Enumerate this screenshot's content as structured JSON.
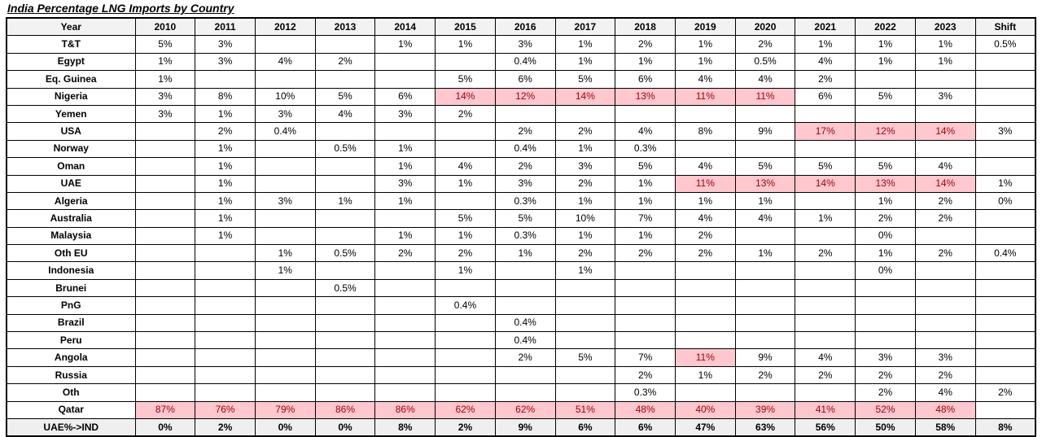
{
  "title": "India Percentage LNG Imports by Country",
  "colors": {
    "highlight_fill": "#ffc7ce",
    "highlight_text": "#9c0006",
    "header_fill": "#f2f2f2",
    "summary_fill": "#efefef",
    "border": "#000000"
  },
  "chart_data": {
    "type": "table",
    "title": "India Percentage LNG Imports by Country",
    "columns": [
      "Year",
      "2010",
      "2011",
      "2012",
      "2013",
      "2014",
      "2015",
      "2016",
      "2017",
      "2018",
      "2019",
      "2020",
      "2021",
      "2022",
      "2023",
      "Shift"
    ],
    "rows": [
      {
        "label": "T&T",
        "values": [
          "5%",
          "3%",
          "",
          "",
          "1%",
          "1%",
          "3%",
          "1%",
          "2%",
          "1%",
          "2%",
          "1%",
          "1%",
          "1%",
          "0.5%"
        ],
        "highlight": []
      },
      {
        "label": "Egypt",
        "values": [
          "1%",
          "3%",
          "4%",
          "2%",
          "",
          "",
          "0.4%",
          "1%",
          "1%",
          "1%",
          "0.5%",
          "4%",
          "1%",
          "1%",
          ""
        ],
        "highlight": []
      },
      {
        "label": "Eq. Guinea",
        "values": [
          "1%",
          "",
          "",
          "",
          "",
          "5%",
          "6%",
          "5%",
          "6%",
          "4%",
          "4%",
          "2%",
          "",
          "",
          ""
        ],
        "highlight": []
      },
      {
        "label": "Nigeria",
        "values": [
          "3%",
          "8%",
          "10%",
          "5%",
          "6%",
          "14%",
          "12%",
          "14%",
          "13%",
          "11%",
          "11%",
          "6%",
          "5%",
          "3%",
          ""
        ],
        "highlight": [
          5,
          6,
          7,
          8,
          9,
          10
        ]
      },
      {
        "label": "Yemen",
        "values": [
          "3%",
          "1%",
          "3%",
          "4%",
          "3%",
          "2%",
          "",
          "",
          "",
          "",
          "",
          "",
          "",
          "",
          ""
        ],
        "highlight": []
      },
      {
        "label": "USA",
        "values": [
          "",
          "2%",
          "0.4%",
          "",
          "",
          "",
          "2%",
          "2%",
          "4%",
          "8%",
          "9%",
          "17%",
          "12%",
          "14%",
          "3%"
        ],
        "highlight": [
          11,
          12,
          13
        ]
      },
      {
        "label": "Norway",
        "values": [
          "",
          "1%",
          "",
          "0.5%",
          "1%",
          "",
          "0.4%",
          "1%",
          "0.3%",
          "",
          "",
          "",
          "",
          "",
          ""
        ],
        "highlight": []
      },
      {
        "label": "Oman",
        "values": [
          "",
          "1%",
          "",
          "",
          "1%",
          "4%",
          "2%",
          "3%",
          "5%",
          "4%",
          "5%",
          "5%",
          "5%",
          "4%",
          ""
        ],
        "highlight": []
      },
      {
        "label": "UAE",
        "values": [
          "",
          "1%",
          "",
          "",
          "3%",
          "1%",
          "3%",
          "2%",
          "1%",
          "11%",
          "13%",
          "14%",
          "13%",
          "14%",
          "1%"
        ],
        "highlight": [
          9,
          10,
          11,
          12,
          13
        ]
      },
      {
        "label": "Algeria",
        "values": [
          "",
          "1%",
          "3%",
          "1%",
          "1%",
          "",
          "0.3%",
          "1%",
          "1%",
          "1%",
          "1%",
          "",
          "1%",
          "2%",
          "0%"
        ],
        "highlight": []
      },
      {
        "label": "Australia",
        "values": [
          "",
          "1%",
          "",
          "",
          "",
          "5%",
          "5%",
          "10%",
          "7%",
          "4%",
          "4%",
          "1%",
          "2%",
          "2%",
          ""
        ],
        "highlight": []
      },
      {
        "label": "Malaysia",
        "values": [
          "",
          "1%",
          "",
          "",
          "1%",
          "1%",
          "0.3%",
          "1%",
          "1%",
          "2%",
          "",
          "",
          "0%",
          "",
          ""
        ],
        "highlight": []
      },
      {
        "label": "Oth EU",
        "values": [
          "",
          "",
          "1%",
          "0.5%",
          "2%",
          "2%",
          "1%",
          "2%",
          "2%",
          "2%",
          "1%",
          "2%",
          "1%",
          "2%",
          "0.4%"
        ],
        "highlight": []
      },
      {
        "label": "Indonesia",
        "values": [
          "",
          "",
          "1%",
          "",
          "",
          "1%",
          "",
          "1%",
          "",
          "",
          "",
          "",
          "0%",
          "",
          ""
        ],
        "highlight": []
      },
      {
        "label": "Brunei",
        "values": [
          "",
          "",
          "",
          "0.5%",
          "",
          "",
          "",
          "",
          "",
          "",
          "",
          "",
          "",
          "",
          ""
        ],
        "highlight": []
      },
      {
        "label": "PnG",
        "values": [
          "",
          "",
          "",
          "",
          "",
          "0.4%",
          "",
          "",
          "",
          "",
          "",
          "",
          "",
          "",
          ""
        ],
        "highlight": []
      },
      {
        "label": "Brazil",
        "values": [
          "",
          "",
          "",
          "",
          "",
          "",
          "0.4%",
          "",
          "",
          "",
          "",
          "",
          "",
          "",
          ""
        ],
        "highlight": []
      },
      {
        "label": "Peru",
        "values": [
          "",
          "",
          "",
          "",
          "",
          "",
          "0.4%",
          "",
          "",
          "",
          "",
          "",
          "",
          "",
          ""
        ],
        "highlight": []
      },
      {
        "label": "Angola",
        "values": [
          "",
          "",
          "",
          "",
          "",
          "",
          "2%",
          "5%",
          "7%",
          "11%",
          "9%",
          "4%",
          "3%",
          "3%",
          ""
        ],
        "highlight": [
          9
        ]
      },
      {
        "label": "Russia",
        "values": [
          "",
          "",
          "",
          "",
          "",
          "",
          "",
          "",
          "2%",
          "1%",
          "2%",
          "2%",
          "2%",
          "2%",
          ""
        ],
        "highlight": []
      },
      {
        "label": "Oth",
        "values": [
          "",
          "",
          "",
          "",
          "",
          "",
          "",
          "",
          "0.3%",
          "",
          "",
          "",
          "2%",
          "4%",
          "2%"
        ],
        "highlight": []
      },
      {
        "label": "Qatar",
        "values": [
          "87%",
          "76%",
          "79%",
          "86%",
          "86%",
          "62%",
          "62%",
          "51%",
          "48%",
          "40%",
          "39%",
          "41%",
          "52%",
          "48%",
          ""
        ],
        "highlight": [
          0,
          1,
          2,
          3,
          4,
          5,
          6,
          7,
          8,
          9,
          10,
          11,
          12,
          13
        ]
      },
      {
        "label": "UAE%->IND",
        "values": [
          "0%",
          "2%",
          "0%",
          "0%",
          "8%",
          "2%",
          "9%",
          "6%",
          "6%",
          "47%",
          "63%",
          "56%",
          "50%",
          "58%",
          "8%"
        ],
        "highlight": [],
        "style": "summary"
      }
    ]
  }
}
